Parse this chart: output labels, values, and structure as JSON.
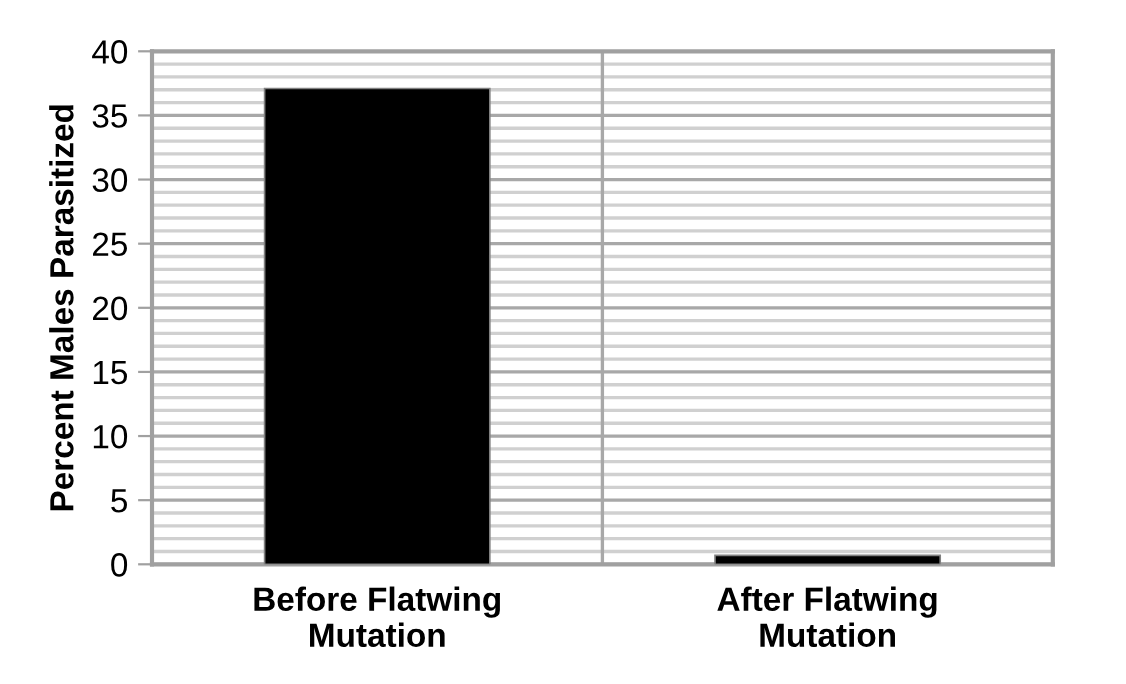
{
  "chart_data": {
    "type": "bar",
    "ylabel": "Percent Males Parasitized",
    "categories": [
      "Before Flatwing\nMutation",
      "After Flatwing\nMutation"
    ],
    "values": [
      37.1,
      0.7
    ],
    "color": "#000000",
    "ylim": [
      0,
      40
    ],
    "yticks": [
      0,
      5,
      10,
      15,
      20,
      25,
      30,
      35,
      40
    ],
    "grid": true
  }
}
